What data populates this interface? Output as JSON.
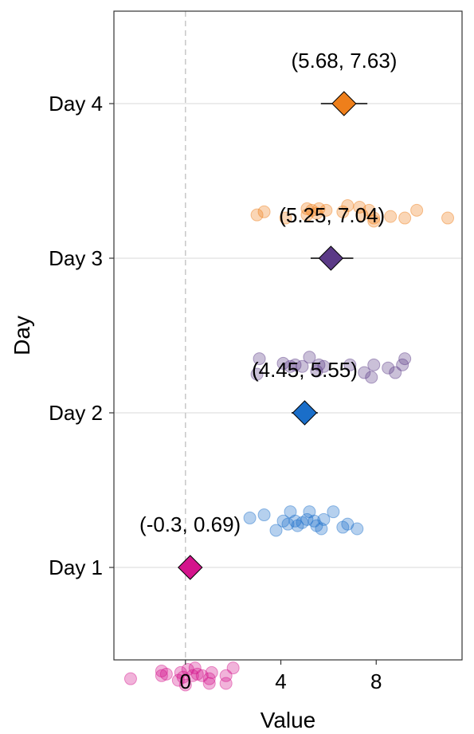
{
  "chart_data": {
    "type": "scatter",
    "title": "",
    "xlabel": "Value",
    "ylabel": "Day",
    "xlim": [
      -3,
      11.6
    ],
    "xticks": [
      0,
      4,
      8
    ],
    "categories": [
      "Day 1",
      "Day 2",
      "Day 3",
      "Day 4"
    ],
    "reference_line_x": 0,
    "grid": "horizontal-major",
    "series": [
      {
        "name": "Day 1",
        "color": "#d4148c",
        "mean": 0.2,
        "ci": [
          -0.3,
          0.69
        ],
        "ci_label": "(-0.3, 0.69)",
        "points": [
          {
            "x": -2.3,
            "j": 0.72
          },
          {
            "x": -1.0,
            "j": 0.7
          },
          {
            "x": -1.0,
            "j": 0.67
          },
          {
            "x": -0.8,
            "j": 0.69
          },
          {
            "x": -0.3,
            "j": 0.73
          },
          {
            "x": -0.2,
            "j": 0.68
          },
          {
            "x": -0.1,
            "j": 0.71
          },
          {
            "x": 0.0,
            "j": 0.76
          },
          {
            "x": 0.1,
            "j": 0.66
          },
          {
            "x": 0.3,
            "j": 0.7
          },
          {
            "x": 0.4,
            "j": 0.65
          },
          {
            "x": 0.5,
            "j": 0.69
          },
          {
            "x": 0.7,
            "j": 0.7
          },
          {
            "x": 1.0,
            "j": 0.75
          },
          {
            "x": 1.0,
            "j": 0.72
          },
          {
            "x": 1.1,
            "j": 0.68
          },
          {
            "x": 1.7,
            "j": 0.75
          },
          {
            "x": 1.7,
            "j": 0.7
          },
          {
            "x": 2.0,
            "j": 0.65
          }
        ]
      },
      {
        "name": "Day 2",
        "color": "#1a6ec9",
        "mean": 5.0,
        "ci": [
          4.45,
          5.55
        ],
        "ci_label": "(4.45, 5.55)",
        "points": [
          {
            "x": 2.7,
            "j": 0.68
          },
          {
            "x": 3.3,
            "j": 0.66
          },
          {
            "x": 3.8,
            "j": 0.76
          },
          {
            "x": 4.1,
            "j": 0.7
          },
          {
            "x": 4.3,
            "j": 0.72
          },
          {
            "x": 4.4,
            "j": 0.64
          },
          {
            "x": 4.6,
            "j": 0.7
          },
          {
            "x": 4.7,
            "j": 0.73
          },
          {
            "x": 4.9,
            "j": 0.71
          },
          {
            "x": 5.1,
            "j": 0.69
          },
          {
            "x": 5.2,
            "j": 0.64
          },
          {
            "x": 5.4,
            "j": 0.7
          },
          {
            "x": 5.5,
            "j": 0.73
          },
          {
            "x": 5.7,
            "j": 0.75
          },
          {
            "x": 5.8,
            "j": 0.69
          },
          {
            "x": 6.2,
            "j": 0.64
          },
          {
            "x": 6.6,
            "j": 0.74
          },
          {
            "x": 6.8,
            "j": 0.72
          },
          {
            "x": 7.2,
            "j": 0.75
          }
        ]
      },
      {
        "name": "Day 3",
        "color": "#5b3a87",
        "mean": 6.1,
        "ci": [
          5.25,
          7.04
        ],
        "ci_label": "(5.25, 7.04)",
        "points": [
          {
            "x": 3.0,
            "j": 0.75
          },
          {
            "x": 3.1,
            "j": 0.65
          },
          {
            "x": 4.1,
            "j": 0.68
          },
          {
            "x": 4.4,
            "j": 0.7
          },
          {
            "x": 4.6,
            "j": 0.69
          },
          {
            "x": 4.9,
            "j": 0.7
          },
          {
            "x": 5.2,
            "j": 0.64
          },
          {
            "x": 5.5,
            "j": 0.73
          },
          {
            "x": 5.6,
            "j": 0.69
          },
          {
            "x": 5.8,
            "j": 0.7
          },
          {
            "x": 6.9,
            "j": 0.69
          },
          {
            "x": 7.5,
            "j": 0.74
          },
          {
            "x": 7.8,
            "j": 0.77
          },
          {
            "x": 7.9,
            "j": 0.69
          },
          {
            "x": 8.5,
            "j": 0.71
          },
          {
            "x": 8.8,
            "j": 0.74
          },
          {
            "x": 9.1,
            "j": 0.69
          },
          {
            "x": 9.2,
            "j": 0.65
          }
        ]
      },
      {
        "name": "Day 4",
        "color": "#ee7f1b",
        "mean": 6.65,
        "ci": [
          5.68,
          7.63
        ],
        "ci_label": "(5.68, 7.63)",
        "points": [
          {
            "x": 3.0,
            "j": 0.72
          },
          {
            "x": 3.3,
            "j": 0.7
          },
          {
            "x": 4.2,
            "j": 0.74
          },
          {
            "x": 5.1,
            "j": 0.72
          },
          {
            "x": 5.1,
            "j": 0.68
          },
          {
            "x": 5.3,
            "j": 0.69
          },
          {
            "x": 5.5,
            "j": 0.71
          },
          {
            "x": 5.6,
            "j": 0.68
          },
          {
            "x": 5.9,
            "j": 0.69
          },
          {
            "x": 6.6,
            "j": 0.7
          },
          {
            "x": 6.8,
            "j": 0.66
          },
          {
            "x": 7.3,
            "j": 0.67
          },
          {
            "x": 7.4,
            "j": 0.72
          },
          {
            "x": 7.7,
            "j": 0.69
          },
          {
            "x": 7.9,
            "j": 0.76
          },
          {
            "x": 7.9,
            "j": 0.74
          },
          {
            "x": 8.6,
            "j": 0.73
          },
          {
            "x": 9.2,
            "j": 0.74
          },
          {
            "x": 9.7,
            "j": 0.69
          },
          {
            "x": 11.0,
            "j": 0.74
          }
        ]
      }
    ]
  }
}
